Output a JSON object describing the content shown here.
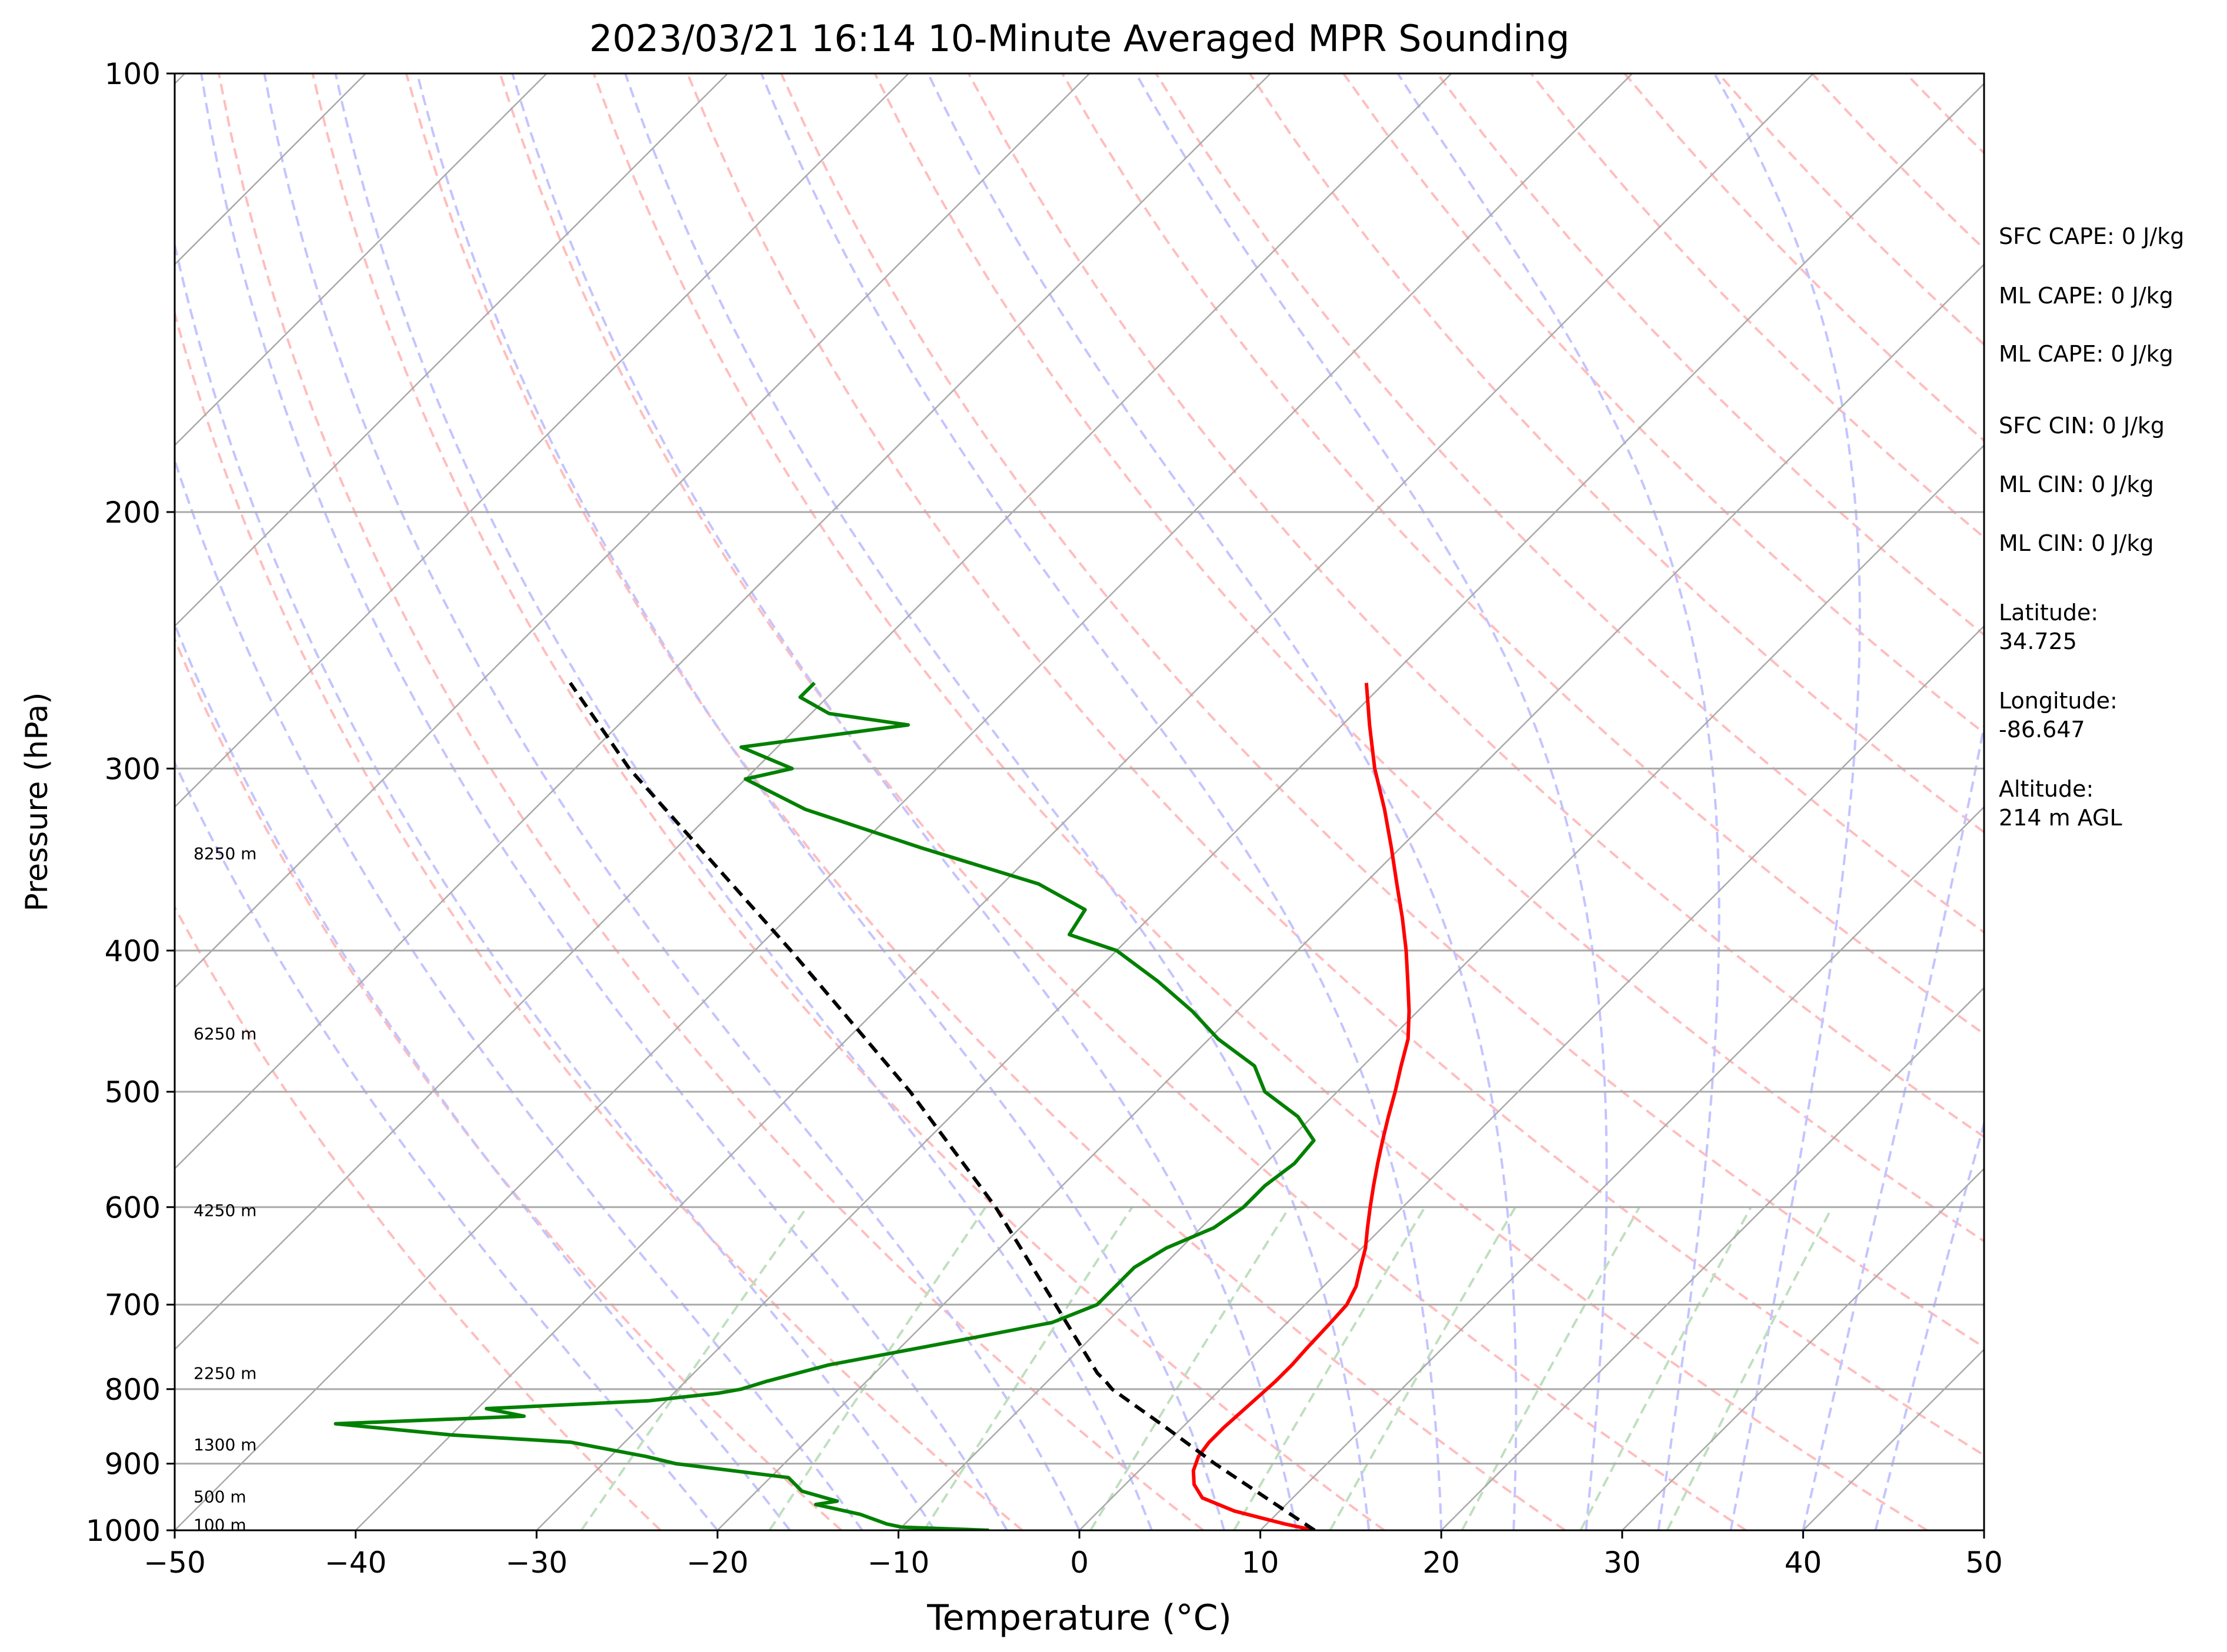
{
  "chart_data": {
    "type": "line",
    "subtype": "skew-t log-p sounding",
    "title": "2023/03/21 16:14 10-Minute Averaged MPR Sounding",
    "xlabel": "Temperature (°C)",
    "ylabel": "Pressure (hPa)",
    "xlim": [
      -50,
      50
    ],
    "ylim": [
      1000,
      100
    ],
    "y_scale": "log",
    "x_ticks": [
      "−50",
      "−40",
      "−30",
      "−20",
      "−10",
      "0",
      "10",
      "20",
      "30",
      "40",
      "50"
    ],
    "x_tick_values": [
      -50,
      -40,
      -30,
      -20,
      -10,
      0,
      10,
      20,
      30,
      40,
      50
    ],
    "y_ticks": [
      "1000",
      "900",
      "800",
      "700",
      "600",
      "500",
      "400",
      "300",
      "200",
      "100"
    ],
    "y_tick_values": [
      1000,
      900,
      800,
      700,
      600,
      500,
      400,
      300,
      200,
      100
    ],
    "grid": true,
    "series": [
      {
        "color": "#ff0000",
        "points": [
          [
            1000,
            13.0
          ],
          [
            990,
            11.0
          ],
          [
            970,
            7.5
          ],
          [
            950,
            5.0
          ],
          [
            930,
            3.8
          ],
          [
            910,
            3.0
          ],
          [
            890,
            2.5
          ],
          [
            870,
            2.3
          ],
          [
            850,
            2.3
          ],
          [
            830,
            2.4
          ],
          [
            810,
            2.5
          ],
          [
            790,
            2.6
          ],
          [
            770,
            2.6
          ],
          [
            750,
            2.5
          ],
          [
            720,
            2.4
          ],
          [
            700,
            2.3
          ],
          [
            680,
            1.8
          ],
          [
            660,
            1.0
          ],
          [
            640,
            0.2
          ],
          [
            620,
            -0.8
          ],
          [
            600,
            -1.8
          ],
          [
            580,
            -2.8
          ],
          [
            560,
            -3.8
          ],
          [
            540,
            -4.8
          ],
          [
            520,
            -5.8
          ],
          [
            500,
            -6.8
          ],
          [
            480,
            -7.9
          ],
          [
            460,
            -9.0
          ],
          [
            440,
            -10.5
          ],
          [
            420,
            -12.2
          ],
          [
            400,
            -14.0
          ],
          [
            380,
            -16.0
          ],
          [
            360,
            -18.2
          ],
          [
            340,
            -20.5
          ],
          [
            320,
            -23.0
          ],
          [
            300,
            -25.8
          ],
          [
            280,
            -28.5
          ],
          [
            262,
            -31.0
          ]
        ]
      },
      {
        "color": "#008000",
        "points": [
          [
            1000,
            -5.0
          ],
          [
            995,
            -10.0
          ],
          [
            990,
            -11.0
          ],
          [
            975,
            -13.0
          ],
          [
            960,
            -16.0
          ],
          [
            955,
            -15.0
          ],
          [
            940,
            -17.5
          ],
          [
            920,
            -19.0
          ],
          [
            900,
            -26.0
          ],
          [
            890,
            -28.0
          ],
          [
            870,
            -33.0
          ],
          [
            860,
            -40.0
          ],
          [
            845,
            -47.0
          ],
          [
            835,
            -37.0
          ],
          [
            825,
            -39.5
          ],
          [
            815,
            -31.0
          ],
          [
            805,
            -27.5
          ],
          [
            800,
            -26.5
          ],
          [
            790,
            -25.5
          ],
          [
            770,
            -23.0
          ],
          [
            740,
            -17.0
          ],
          [
            720,
            -13.0
          ],
          [
            700,
            -11.5
          ],
          [
            680,
            -11.5
          ],
          [
            660,
            -11.5
          ],
          [
            640,
            -10.8
          ],
          [
            620,
            -9.3
          ],
          [
            600,
            -8.8
          ],
          [
            580,
            -8.8
          ],
          [
            560,
            -8.4
          ],
          [
            540,
            -8.6
          ],
          [
            520,
            -10.8
          ],
          [
            500,
            -14.0
          ],
          [
            480,
            -16.0
          ],
          [
            460,
            -19.5
          ],
          [
            440,
            -22.5
          ],
          [
            420,
            -26.0
          ],
          [
            400,
            -30.0
          ],
          [
            390,
            -33.5
          ],
          [
            375,
            -34.0
          ],
          [
            360,
            -38.0
          ],
          [
            340,
            -46.5
          ],
          [
            320,
            -55.0
          ],
          [
            305,
            -60.0
          ],
          [
            300,
            -58.0
          ],
          [
            290,
            -62.0
          ],
          [
            280,
            -54.0
          ],
          [
            275,
            -59.0
          ],
          [
            268,
            -61.5
          ],
          [
            262,
            -61.5
          ]
        ]
      },
      {
        "color": "#000000",
        "style": "dashed",
        "points": [
          [
            1000,
            13.0
          ],
          [
            900,
            3.8
          ],
          [
            850,
            -0.9
          ],
          [
            800,
            -6.0
          ],
          [
            790,
            -6.8
          ],
          [
            780,
            -7.7
          ],
          [
            700,
            -13.8
          ],
          [
            600,
            -22.5
          ],
          [
            500,
            -33.6
          ],
          [
            400,
            -48.0
          ],
          [
            300,
            -67.0
          ],
          [
            262,
            -75.0
          ]
        ]
      }
    ],
    "height_labels": [
      {
        "text": "100 m",
        "p": 991
      },
      {
        "text": "500 m",
        "p": 948
      },
      {
        "text": "1300 m",
        "p": 873
      },
      {
        "text": "2250 m",
        "p": 780
      },
      {
        "text": "4250 m",
        "p": 603
      },
      {
        "text": "6250 m",
        "p": 456
      },
      {
        "text": "8250 m",
        "p": 343
      }
    ],
    "stats": [
      "SFC CAPE: 0 J/kg",
      "ML CAPE: 0 J/kg",
      "ML CAPE: 0 J/kg",
      "SFC CIN: 0 J/kg",
      "ML CIN: 0 J/kg",
      "ML CIN: 0 J/kg",
      "Latitude:",
      "34.725",
      "Longitude:",
      "-86.647",
      "Altitude:",
      "214 m AGL"
    ],
    "background_lines": {
      "isotherms_color": "#a9a9a9",
      "dry_adiabats_color": "#ffbdbd",
      "moist_adiabats_color": "#c4c4ff",
      "mixing_ratio_color": "#bfdfbf"
    }
  }
}
